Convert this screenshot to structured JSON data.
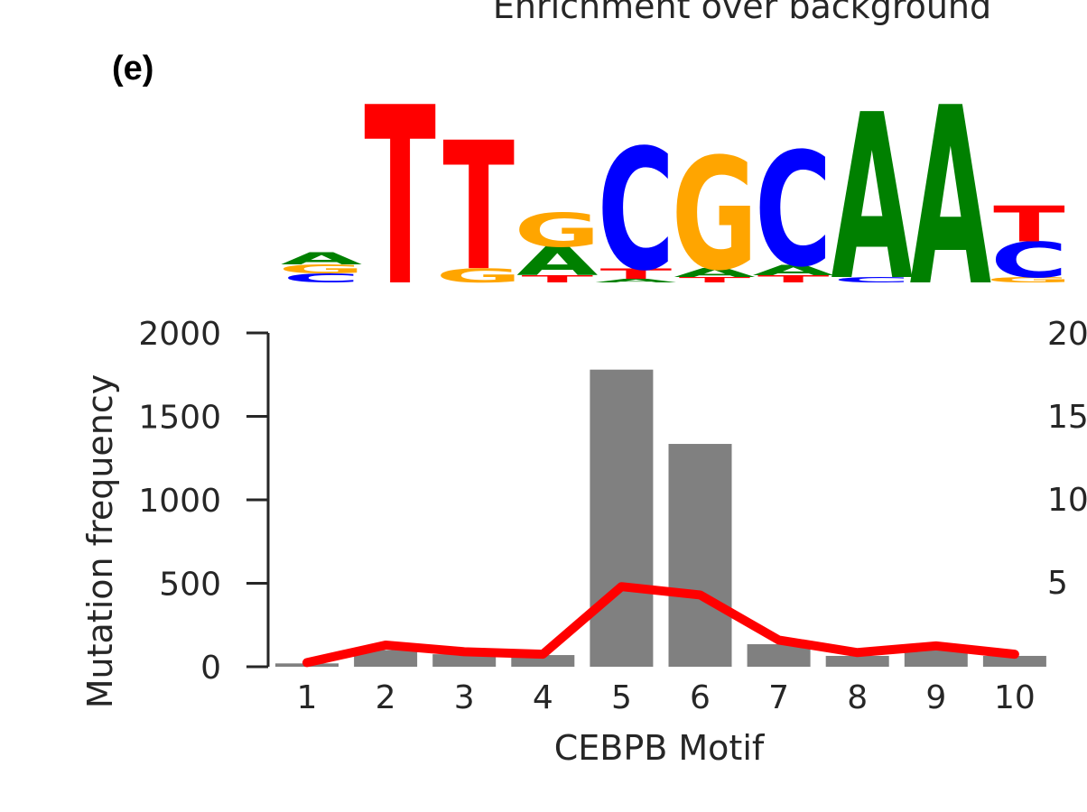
{
  "panel_label": "(e)",
  "top_title": "Enrichment over background",
  "motif_logo": {
    "colors": {
      "A": "#008000",
      "C": "#0000ff",
      "G": "#ffa500",
      "T": "#ff0000"
    },
    "positions": [
      {
        "position": 1,
        "letters": [
          {
            "base": "C",
            "height": 0.05
          },
          {
            "base": "G",
            "height": 0.05
          },
          {
            "base": "A",
            "height": 0.07
          }
        ]
      },
      {
        "position": 2,
        "letters": [
          {
            "base": "T",
            "height": 1.0
          }
        ]
      },
      {
        "position": 3,
        "letters": [
          {
            "base": "G",
            "height": 0.08
          },
          {
            "base": "T",
            "height": 0.72
          }
        ]
      },
      {
        "position": 4,
        "letters": [
          {
            "base": "T",
            "height": 0.04
          },
          {
            "base": "A",
            "height": 0.16
          },
          {
            "base": "G",
            "height": 0.19
          }
        ]
      },
      {
        "position": 5,
        "letters": [
          {
            "base": "A",
            "height": 0.02
          },
          {
            "base": "T",
            "height": 0.06
          },
          {
            "base": "C",
            "height": 0.68
          }
        ]
      },
      {
        "position": 6,
        "letters": [
          {
            "base": "T",
            "height": 0.03
          },
          {
            "base": "A",
            "height": 0.05
          },
          {
            "base": "G",
            "height": 0.63
          }
        ]
      },
      {
        "position": 7,
        "letters": [
          {
            "base": "T",
            "height": 0.04
          },
          {
            "base": "A",
            "height": 0.06
          },
          {
            "base": "C",
            "height": 0.64
          }
        ]
      },
      {
        "position": 8,
        "letters": [
          {
            "base": "C",
            "height": 0.03
          },
          {
            "base": "A",
            "height": 0.93
          }
        ]
      },
      {
        "position": 9,
        "letters": [
          {
            "base": "A",
            "height": 1.0
          }
        ]
      },
      {
        "position": 10,
        "letters": [
          {
            "base": "G",
            "height": 0.03
          },
          {
            "base": "C",
            "height": 0.2
          },
          {
            "base": "T",
            "height": 0.2
          }
        ]
      }
    ]
  },
  "chart_data": {
    "type": "bar",
    "xlabel": "CEBPB Motif",
    "ylabel": "Mutation frequency",
    "categories": [
      "1",
      "2",
      "3",
      "4",
      "5",
      "6",
      "7",
      "8",
      "9",
      "10"
    ],
    "ylim": [
      0,
      2000
    ],
    "yticks": [
      "0",
      "500",
      "1000",
      "1500",
      "2000"
    ],
    "right_axis_tick_fragments": [
      "20",
      "15",
      "10",
      "5"
    ],
    "series": [
      {
        "type": "bar",
        "color": "#808080",
        "values": [
          20,
          100,
          75,
          70,
          1780,
          1335,
          135,
          65,
          100,
          65
        ]
      },
      {
        "type": "line",
        "color": "#ff0000",
        "values": [
          25,
          130,
          90,
          75,
          480,
          430,
          160,
          85,
          125,
          75
        ]
      }
    ]
  }
}
